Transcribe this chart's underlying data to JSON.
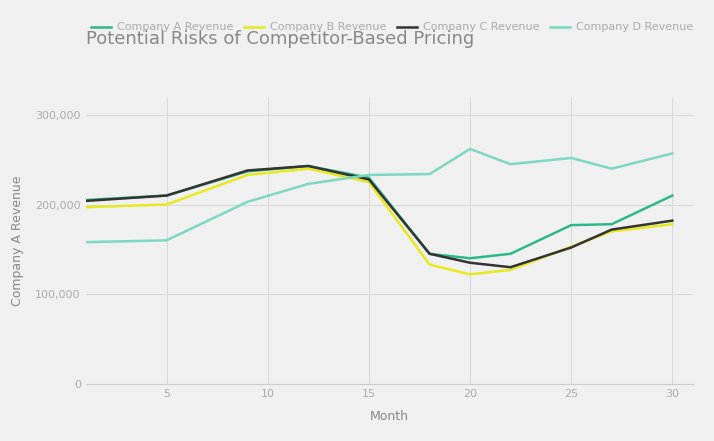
{
  "title": "Potential Risks of Competitor-Based Pricing",
  "xlabel": "Month",
  "ylabel": "Company A Revenue",
  "background_color": "#f0f0f0",
  "plot_bg_color": "#f0f0f0",
  "xlim": [
    1,
    31
  ],
  "ylim": [
    0,
    320000
  ],
  "yticks": [
    0,
    100000,
    200000,
    300000
  ],
  "xticks": [
    5,
    10,
    15,
    20,
    25,
    30
  ],
  "months": [
    1,
    5,
    9,
    12,
    15,
    18,
    20,
    22,
    25,
    27,
    30
  ],
  "company_a": [
    205000,
    210000,
    237000,
    243000,
    230000,
    145000,
    140000,
    145000,
    177000,
    178000,
    210000
  ],
  "company_b": [
    197000,
    200000,
    233000,
    240000,
    225000,
    133000,
    122000,
    127000,
    153000,
    170000,
    178000
  ],
  "company_c": [
    204000,
    210000,
    238000,
    243000,
    228000,
    145000,
    135000,
    130000,
    152000,
    172000,
    182000
  ],
  "company_d": [
    158000,
    160000,
    203000,
    223000,
    233000,
    234000,
    262000,
    245000,
    252000,
    240000,
    257000
  ],
  "color_a": "#2db88a",
  "color_b": "#e8e820",
  "color_c": "#333333",
  "color_d": "#7dd8c0",
  "linewidth": 1.8,
  "legend_labels": [
    "Company A Revenue",
    "Company B Revenue",
    "Company C Revenue",
    "Company D Revenue"
  ],
  "title_fontsize": 13,
  "axis_label_fontsize": 9,
  "tick_fontsize": 8,
  "legend_fontsize": 8
}
